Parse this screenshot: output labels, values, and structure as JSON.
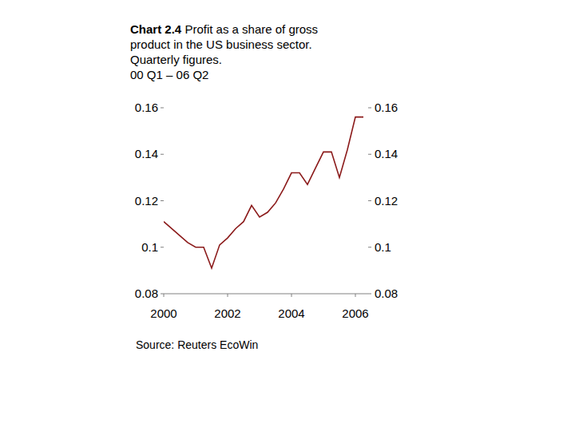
{
  "chart_data": {
    "type": "line",
    "title_label": "Chart 2.4",
    "title": "Profit as a share of gross product in the US business sector.",
    "subtitle": "Quarterly figures.",
    "period": "00 Q1 – 06 Q2",
    "source": "Source: Reuters EcoWin",
    "x": [
      2000,
      2000.25,
      2000.5,
      2000.75,
      2001,
      2001.25,
      2001.5,
      2001.75,
      2002,
      2002.25,
      2002.5,
      2002.75,
      2003,
      2003.25,
      2003.5,
      2003.75,
      2004,
      2004.25,
      2004.5,
      2004.75,
      2005,
      2005.25,
      2005.5,
      2005.75,
      2006,
      2006.25
    ],
    "series": [
      {
        "color": "#8b1a1a",
        "values": [
          0.111,
          0.108,
          0.105,
          0.102,
          0.1,
          0.1,
          0.091,
          0.101,
          0.104,
          0.108,
          0.111,
          0.118,
          0.113,
          0.115,
          0.119,
          0.125,
          0.132,
          0.132,
          0.127,
          0.134,
          0.141,
          0.141,
          0.13,
          0.142,
          0.156,
          0.156
        ]
      }
    ],
    "xlim": [
      2000,
      2006.4
    ],
    "xticks": [
      2000,
      2002,
      2004,
      2006
    ],
    "ylim": [
      0.08,
      0.16
    ],
    "yticks": [
      0.08,
      0.1,
      0.12,
      0.14,
      0.16
    ],
    "grid": false
  }
}
